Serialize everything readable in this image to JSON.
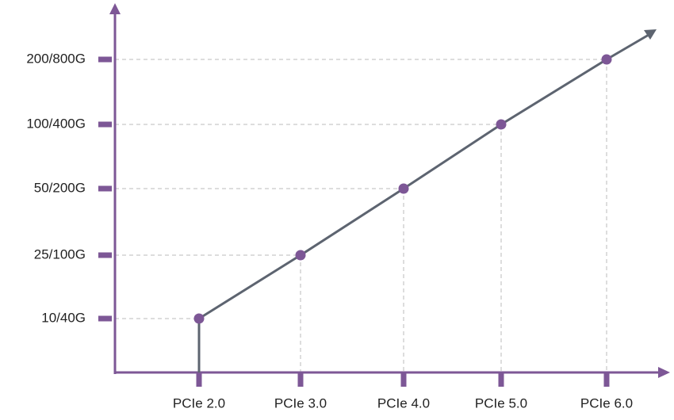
{
  "chart_data": {
    "type": "line",
    "categories": [
      "PCIe 2.0",
      "PCIe 3.0",
      "PCIe 4.0",
      "PCIe 5.0",
      "PCIe 6.0"
    ],
    "yticks": [
      "10/40G",
      "25/100G",
      "50/200G",
      "100/400G",
      "200/800G"
    ],
    "values": [
      "10/40G",
      "25/100G",
      "50/200G",
      "100/400G",
      "200/800G"
    ],
    "color": "#5d6470",
    "marker_color": "#7d5796",
    "axis_color": "#7d5796",
    "grid": true
  }
}
